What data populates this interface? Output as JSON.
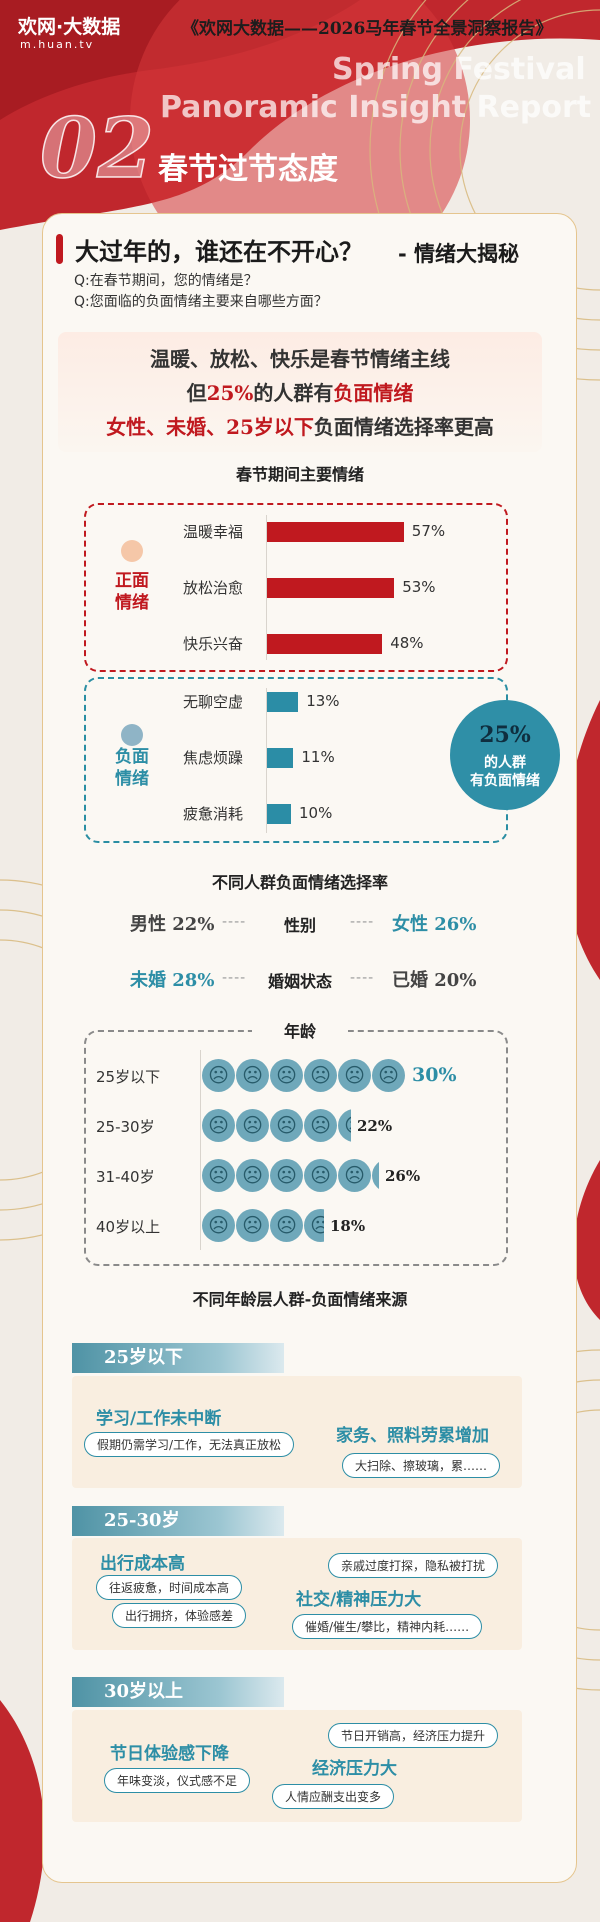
{
  "header": {
    "logo": "欢网·大数据",
    "logo_url": "m.huan.tv",
    "report_title": "《欢网大数据——2026马年春节全景洞察报告》",
    "ghost_line1": "Spring Festival",
    "ghost_line2": "Panoramic Insight Report"
  },
  "section": {
    "number": "02",
    "title": "春节过节态度"
  },
  "card": {
    "heading": "大过年的，谁还在不开心？",
    "heading_suffix": "- 情绪大揭秘",
    "q1": "Q:在春节期间，您的情绪是？",
    "q2": "Q:您面临的负面情绪主要来自哪些方面？"
  },
  "summary": {
    "line1": "温暖、放松、快乐是春节情绪主线",
    "line2_a": "但",
    "line2_b": "25%",
    "line2_c": "的人群有",
    "line2_d": "负面情绪",
    "line3_a": "女性、未婚、25岁以下",
    "line3_b": "负面情绪选择率更高"
  },
  "emotions": {
    "title": "春节期间主要情绪",
    "positive_label_1": "正面",
    "positive_label_2": "情绪",
    "negative_label_1": "负面",
    "negative_label_2": "情绪",
    "bubble_value": "25%",
    "bubble_line1": "的人群",
    "bubble_line2": "有负面情绪",
    "colors": {
      "positive": "#c0191f",
      "negative": "#2b8da6"
    }
  },
  "chart_data": {
    "type": "bar",
    "orientation": "horizontal",
    "title": "春节期间主要情绪",
    "positive": [
      {
        "label": "温暖幸福",
        "value": 57,
        "display": "57%"
      },
      {
        "label": "放松治愈",
        "value": 53,
        "display": "53%"
      },
      {
        "label": "快乐兴奋",
        "value": 48,
        "display": "48%"
      }
    ],
    "negative": [
      {
        "label": "无聊空虚",
        "value": 13,
        "display": "13%"
      },
      {
        "label": "焦虑烦躁",
        "value": 11,
        "display": "11%"
      },
      {
        "label": "疲惫消耗",
        "value": 10,
        "display": "10%"
      }
    ]
  },
  "groups": {
    "title": "不同人群负面情绪选择率",
    "gender_label": "性别",
    "male": "男性 22%",
    "female": "女性 26%",
    "marital_label": "婚姻状态",
    "unmarried": "未婚 28%",
    "married": "已婚 20%",
    "dash": "----"
  },
  "age": {
    "label": "年龄",
    "rows": [
      {
        "label": "25岁以下",
        "value": 30,
        "display": "30%"
      },
      {
        "label": "25-30岁",
        "value": 22,
        "display": "22%"
      },
      {
        "label": "31-40岁",
        "value": 26,
        "display": "26%"
      },
      {
        "label": "40岁以上",
        "value": 18,
        "display": "18%"
      }
    ]
  },
  "sources": {
    "title": "不同年龄层人群-负面情绪来源",
    "g1": {
      "tag": "25岁以下",
      "h1": "学习/工作未中断",
      "p1": "假期仍需学习/工作，无法真正放松",
      "h2": "家务、照料劳累增加",
      "p2": "大扫除、擦玻璃，累……"
    },
    "g2": {
      "tag": "25-30岁",
      "h1": "出行成本高",
      "p1": "往返疲惫，时间成本高",
      "p2": "出行拥挤，体验感差",
      "p3": "亲戚过度打探，隐私被打扰",
      "h2": "社交/精神压力大",
      "p4": "催婚/催生/攀比，精神内耗……"
    },
    "g3": {
      "tag": "30岁以上",
      "h1": "节日体验感下降",
      "p1": "年味变淡，仪式感不足",
      "p2": "节日开销高，经济压力提升",
      "h2": "经济压力大",
      "p3": "人情应酬支出变多"
    }
  }
}
